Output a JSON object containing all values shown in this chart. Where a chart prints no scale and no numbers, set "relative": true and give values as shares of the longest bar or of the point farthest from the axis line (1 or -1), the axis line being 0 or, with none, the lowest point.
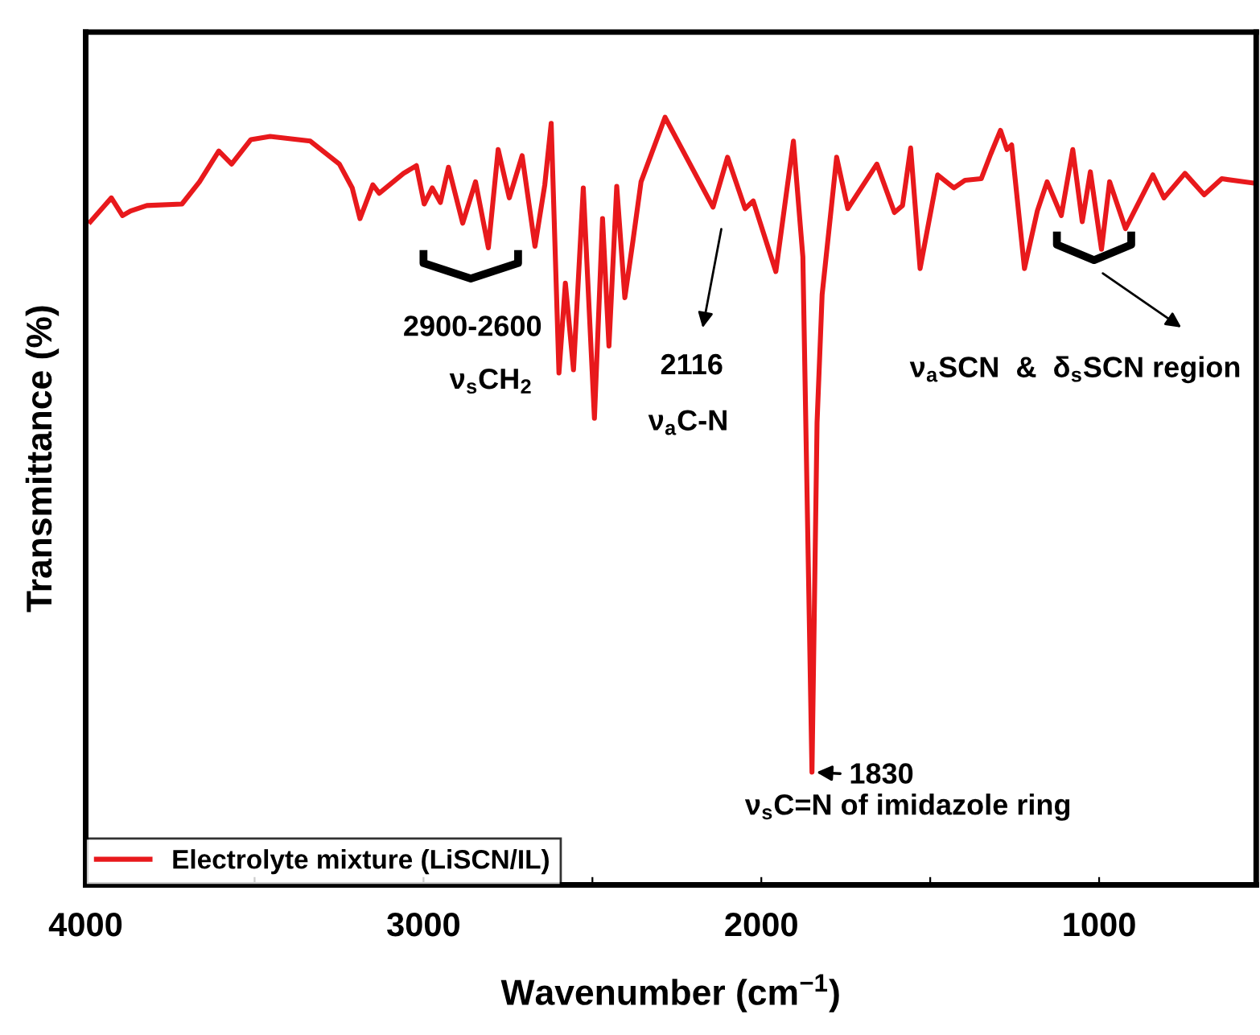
{
  "chart_data": {
    "type": "line",
    "relative": true,
    "xlabel": "Wavenumber (cm$^{−1}$)",
    "ylabel": "Transmittance (%)",
    "x": [
      3986,
      3924,
      3891,
      3867,
      3819,
      3715,
      3663,
      3606,
      3568,
      3511,
      3454,
      3335,
      3249,
      3211,
      3188,
      3150,
      3131,
      3059,
      3021,
      2998,
      2974,
      2950,
      2926,
      2884,
      2846,
      2808,
      2779,
      2746,
      2708,
      2670,
      2641,
      2622,
      2599,
      2580,
      2556,
      2527,
      2494,
      2470,
      2451,
      2428,
      2404,
      2380,
      2356,
      2285,
      2143,
      2100,
      2048,
      2024,
      1957,
      1905,
      1877,
      1850,
      1835,
      1820,
      1777,
      1744,
      1658,
      1606,
      1582,
      1558,
      1530,
      1478,
      1430,
      1397,
      1349,
      1321,
      1292,
      1273,
      1259,
      1221,
      1183,
      1154,
      1112,
      1078,
      1050,
      1026,
      993,
      969,
      922,
      841,
      808,
      746,
      689,
      637,
      537
    ],
    "xlim": [
      4000,
      535
    ],
    "xticks": [
      4000,
      {
        "value": 3500,
        "label": null
      },
      3000,
      {
        "value": 2500,
        "label": null
      },
      2000,
      {
        "value": 1500,
        "label": null
      },
      1000
    ],
    "series": [
      {
        "name": "Electrolyte mixture (LiSCN/IL)",
        "color": "#e8191c",
        "values": [
          0.864,
          0.895,
          0.872,
          0.878,
          0.885,
          0.887,
          0.916,
          0.956,
          0.939,
          0.971,
          0.975,
          0.969,
          0.939,
          0.908,
          0.868,
          0.912,
          0.901,
          0.927,
          0.937,
          0.887,
          0.908,
          0.889,
          0.935,
          0.862,
          0.916,
          0.83,
          0.958,
          0.895,
          0.95,
          0.832,
          0.912,
          0.992,
          0.667,
          0.784,
          0.671,
          0.908,
          0.608,
          0.868,
          0.702,
          0.91,
          0.765,
          0.839,
          0.916,
          1,
          0.883,
          0.948,
          0.881,
          0.891,
          0.799,
          0.969,
          0.818,
          0.147,
          0.602,
          0.769,
          0.948,
          0.881,
          0.939,
          0.876,
          0.885,
          0.96,
          0.803,
          0.925,
          0.908,
          0.918,
          0.92,
          0.952,
          0.983,
          0.958,
          0.964,
          0.803,
          0.878,
          0.916,
          0.872,
          0.958,
          0.864,
          0.929,
          0.828,
          0.916,
          0.855,
          0.925,
          0.895,
          0.927,
          0.899,
          0.92,
          0.914
        ]
      }
    ],
    "legend": "bottom left",
    "grid": false,
    "marker": "none",
    "line_style": "solid",
    "annotations": [
      "2900-2600",
      "ν$_{s}$CH$_{2}$",
      "2116",
      "ν$_{a}$C-N",
      {
        "text": "1830",
        "x": 1850,
        "y": 0.147
      },
      "ν$_{s}$C=N of imidazole ring",
      "ν$_{a}$SCN  &  δ$_{s}$SCN region"
    ]
  }
}
